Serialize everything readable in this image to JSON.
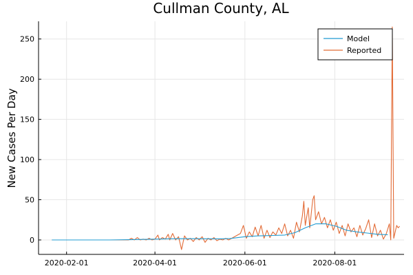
{
  "chart_data": {
    "type": "line",
    "title": "Cullman County, AL",
    "ylabel": "New Cases Per Day",
    "xlabel": "",
    "x_axis_type": "date",
    "xlim": [
      "2020-01-13",
      "2020-09-17"
    ],
    "ylim": [
      -18,
      272
    ],
    "x_ticks": [
      "2020-02-01",
      "2020-04-01",
      "2020-06-01",
      "2020-08-01"
    ],
    "y_ticks": [
      0,
      50,
      100,
      150,
      200,
      250
    ],
    "grid": true,
    "legend_position": "top-right",
    "series": [
      {
        "name": "Model",
        "color": "#1f9bd2",
        "points": [
          [
            "2020-01-22",
            0
          ],
          [
            "2020-03-01",
            0
          ],
          [
            "2020-03-15",
            0.3
          ],
          [
            "2020-04-01",
            1
          ],
          [
            "2020-04-15",
            1.5
          ],
          [
            "2020-05-01",
            1.5
          ],
          [
            "2020-05-15",
            1.3
          ],
          [
            "2020-05-22",
            1.8
          ],
          [
            "2020-06-01",
            4
          ],
          [
            "2020-06-10",
            5
          ],
          [
            "2020-06-20",
            5.5
          ],
          [
            "2020-06-28",
            6
          ],
          [
            "2020-07-05",
            9
          ],
          [
            "2020-07-12",
            15
          ],
          [
            "2020-07-19",
            20
          ],
          [
            "2020-07-26",
            20
          ],
          [
            "2020-08-02",
            17
          ],
          [
            "2020-08-09",
            12
          ],
          [
            "2020-08-16",
            10
          ],
          [
            "2020-08-23",
            8.5
          ],
          [
            "2020-08-30",
            7
          ],
          [
            "2020-09-06",
            6.5
          ]
        ]
      },
      {
        "name": "Reported",
        "color": "#e26a35",
        "points": [
          [
            "2020-01-22",
            0
          ],
          [
            "2020-03-14",
            0
          ],
          [
            "2020-03-16",
            2
          ],
          [
            "2020-03-18",
            0
          ],
          [
            "2020-03-20",
            3
          ],
          [
            "2020-03-22",
            0
          ],
          [
            "2020-03-24",
            1
          ],
          [
            "2020-03-26",
            0
          ],
          [
            "2020-03-28",
            2
          ],
          [
            "2020-03-30",
            0
          ],
          [
            "2020-04-01",
            1
          ],
          [
            "2020-04-03",
            6
          ],
          [
            "2020-04-04",
            0
          ],
          [
            "2020-04-06",
            3
          ],
          [
            "2020-04-08",
            1
          ],
          [
            "2020-04-10",
            7
          ],
          [
            "2020-04-11",
            0
          ],
          [
            "2020-04-13",
            8
          ],
          [
            "2020-04-15",
            0
          ],
          [
            "2020-04-17",
            4
          ],
          [
            "2020-04-19",
            -12
          ],
          [
            "2020-04-21",
            5
          ],
          [
            "2020-04-23",
            0
          ],
          [
            "2020-04-25",
            2
          ],
          [
            "2020-04-27",
            -2
          ],
          [
            "2020-04-29",
            3
          ],
          [
            "2020-05-01",
            0
          ],
          [
            "2020-05-03",
            4
          ],
          [
            "2020-05-05",
            -3
          ],
          [
            "2020-05-07",
            2
          ],
          [
            "2020-05-09",
            0
          ],
          [
            "2020-05-11",
            3
          ],
          [
            "2020-05-13",
            -1
          ],
          [
            "2020-05-15",
            1
          ],
          [
            "2020-05-17",
            0
          ],
          [
            "2020-05-19",
            2
          ],
          [
            "2020-05-21",
            0
          ],
          [
            "2020-05-24",
            3
          ],
          [
            "2020-05-27",
            6
          ],
          [
            "2020-05-29",
            8
          ],
          [
            "2020-05-31",
            18
          ],
          [
            "2020-06-02",
            2
          ],
          [
            "2020-06-04",
            10
          ],
          [
            "2020-06-06",
            4
          ],
          [
            "2020-06-08",
            16
          ],
          [
            "2020-06-10",
            5
          ],
          [
            "2020-06-12",
            18
          ],
          [
            "2020-06-14",
            2
          ],
          [
            "2020-06-16",
            12
          ],
          [
            "2020-06-18",
            3
          ],
          [
            "2020-06-20",
            10
          ],
          [
            "2020-06-22",
            6
          ],
          [
            "2020-06-24",
            15
          ],
          [
            "2020-06-26",
            8
          ],
          [
            "2020-06-28",
            20
          ],
          [
            "2020-06-30",
            5
          ],
          [
            "2020-07-02",
            12
          ],
          [
            "2020-07-04",
            2
          ],
          [
            "2020-07-06",
            22
          ],
          [
            "2020-07-08",
            10
          ],
          [
            "2020-07-10",
            30
          ],
          [
            "2020-07-11",
            48
          ],
          [
            "2020-07-12",
            18
          ],
          [
            "2020-07-14",
            40
          ],
          [
            "2020-07-15",
            15
          ],
          [
            "2020-07-17",
            50
          ],
          [
            "2020-07-18",
            55
          ],
          [
            "2020-07-19",
            25
          ],
          [
            "2020-07-21",
            35
          ],
          [
            "2020-07-23",
            20
          ],
          [
            "2020-07-25",
            28
          ],
          [
            "2020-07-27",
            15
          ],
          [
            "2020-07-29",
            25
          ],
          [
            "2020-07-31",
            12
          ],
          [
            "2020-08-02",
            22
          ],
          [
            "2020-08-04",
            8
          ],
          [
            "2020-08-06",
            18
          ],
          [
            "2020-08-08",
            5
          ],
          [
            "2020-08-10",
            20
          ],
          [
            "2020-08-12",
            10
          ],
          [
            "2020-08-14",
            15
          ],
          [
            "2020-08-16",
            4
          ],
          [
            "2020-08-18",
            18
          ],
          [
            "2020-08-20",
            6
          ],
          [
            "2020-08-22",
            14
          ],
          [
            "2020-08-24",
            25
          ],
          [
            "2020-08-26",
            3
          ],
          [
            "2020-08-28",
            20
          ],
          [
            "2020-08-30",
            5
          ],
          [
            "2020-09-01",
            12
          ],
          [
            "2020-09-03",
            1
          ],
          [
            "2020-09-05",
            8
          ],
          [
            "2020-09-07",
            20
          ],
          [
            "2020-09-08",
            0
          ],
          [
            "2020-09-09",
            265
          ],
          [
            "2020-09-10",
            2
          ],
          [
            "2020-09-12",
            18
          ],
          [
            "2020-09-13",
            15
          ],
          [
            "2020-09-14",
            17
          ]
        ]
      }
    ]
  }
}
